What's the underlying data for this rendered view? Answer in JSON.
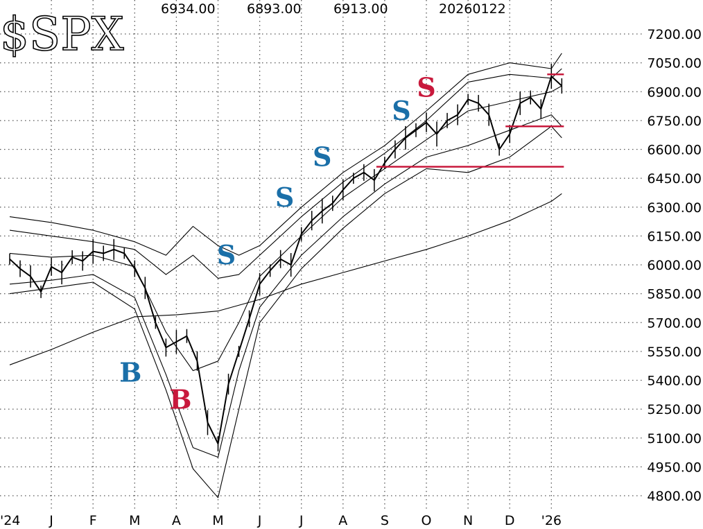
{
  "header": {
    "symbol": "$SPX",
    "values": [
      "6934.00",
      "6893.00",
      "6913.00",
      "20260122"
    ]
  },
  "chart_data": {
    "type": "line",
    "title": "$SPX",
    "xlabel": "",
    "ylabel": "",
    "ylim": [
      4800,
      7200
    ],
    "y_ticks": [
      "7200.00",
      "7050.00",
      "6900.00",
      "6750.00",
      "6600.00",
      "6450.00",
      "6300.00",
      "6150.00",
      "6000.00",
      "5850.00",
      "5700.00",
      "5550.00",
      "5400.00",
      "5250.00",
      "5100.00",
      "4950.00",
      "4800.00"
    ],
    "x_ticks": [
      "24",
      "J",
      "F",
      "M",
      "A",
      "M",
      "J",
      "J",
      "A",
      "S",
      "O",
      "N",
      "D",
      "26"
    ],
    "grid": true,
    "series": [
      {
        "role": "price",
        "x": [
          0,
          0.25,
          0.5,
          0.75,
          1,
          1.25,
          1.5,
          1.75,
          2,
          2.25,
          2.5,
          2.75,
          3,
          3.25,
          3.5,
          3.75,
          4,
          4.25,
          4.5,
          4.75,
          5,
          5.25,
          5.5,
          5.75,
          6,
          6.25,
          6.5,
          6.75,
          7,
          7.25,
          7.5,
          7.75,
          8,
          8.25,
          8.5,
          8.75,
          9,
          9.25,
          9.5,
          9.75,
          10,
          10.25,
          10.5,
          10.75,
          11,
          11.25,
          11.5,
          11.75,
          12,
          12.25,
          12.5,
          12.75,
          13,
          13.25
        ],
        "y": [
          6030,
          5980,
          5940,
          5860,
          5990,
          5960,
          6040,
          6020,
          6070,
          6060,
          6080,
          6060,
          5980,
          5880,
          5700,
          5570,
          5600,
          5630,
          5500,
          5180,
          5070,
          5380,
          5550,
          5720,
          5900,
          5970,
          6030,
          6000,
          6160,
          6230,
          6280,
          6320,
          6390,
          6450,
          6480,
          6440,
          6530,
          6600,
          6660,
          6700,
          6740,
          6680,
          6750,
          6780,
          6860,
          6840,
          6780,
          6600,
          6680,
          6840,
          6870,
          6810,
          6980,
          6930
        ]
      },
      {
        "role": "upper-band-outer",
        "x": [
          0,
          1,
          2,
          3,
          3.75,
          4.4,
          5,
          5.5,
          6,
          7,
          8,
          9,
          10,
          11,
          12,
          13,
          13.25
        ],
        "y": [
          6250,
          6220,
          6180,
          6120,
          6050,
          6200,
          6100,
          6050,
          6100,
          6300,
          6480,
          6620,
          6800,
          6990,
          7050,
          7020,
          7100
        ]
      },
      {
        "role": "upper-band-inner",
        "x": [
          0,
          1,
          2,
          3,
          3.75,
          4.4,
          5,
          5.5,
          6,
          7,
          8,
          9,
          10,
          11,
          12,
          13,
          13.25
        ],
        "y": [
          6180,
          6150,
          6120,
          6080,
          5950,
          6050,
          5930,
          5950,
          6050,
          6250,
          6430,
          6580,
          6750,
          6950,
          6990,
          6970,
          7020
        ]
      },
      {
        "role": "middle-average",
        "x": [
          0,
          1,
          2,
          3,
          3.75,
          4.4,
          5,
          5.5,
          6,
          7,
          8,
          9,
          10,
          11,
          12,
          13,
          13.25
        ],
        "y": [
          6060,
          6040,
          6050,
          5990,
          5650,
          5450,
          5500,
          5700,
          5940,
          6150,
          6350,
          6500,
          6650,
          6800,
          6850,
          6900,
          6930
        ]
      },
      {
        "role": "lower-band-inner",
        "x": [
          0,
          1,
          2,
          3,
          3.75,
          4.4,
          5,
          5.5,
          6,
          7,
          8,
          9,
          10,
          11,
          12,
          13,
          13.25
        ],
        "y": [
          5900,
          5920,
          5950,
          5830,
          5430,
          5050,
          5000,
          5450,
          5780,
          6050,
          6250,
          6420,
          6560,
          6620,
          6700,
          6780,
          6720
        ]
      },
      {
        "role": "lower-band-outer",
        "x": [
          0,
          1,
          2,
          3,
          3.75,
          4.4,
          5,
          5.5,
          6,
          7,
          8,
          9,
          10,
          11,
          12,
          13,
          13.25
        ],
        "y": [
          5850,
          5880,
          5910,
          5770,
          5350,
          4940,
          4790,
          5250,
          5700,
          5980,
          6190,
          6370,
          6500,
          6480,
          6560,
          6720,
          6660
        ]
      },
      {
        "role": "long-term-average",
        "x": [
          0,
          1,
          2,
          3,
          4,
          5,
          6,
          7,
          8,
          9,
          10,
          11,
          12,
          13,
          13.25
        ],
        "y": [
          5480,
          5560,
          5650,
          5730,
          5740,
          5760,
          5820,
          5900,
          5960,
          6020,
          6080,
          6150,
          6230,
          6330,
          6370
        ]
      }
    ],
    "reference_lines": [
      {
        "y": 6510,
        "x_start": 8.8,
        "x_end": 13.3,
        "color": "#c8193c"
      },
      {
        "y": 6720,
        "x_start": 11.9,
        "x_end": 13.3,
        "color": "#c8193c"
      },
      {
        "y": 6990,
        "x_start": 12.9,
        "x_end": 13.3,
        "color": "#c8193c"
      }
    ],
    "annotations": [
      {
        "text": "B",
        "x": 2.9,
        "y": 5440,
        "color": "#1a6fa8"
      },
      {
        "text": "B",
        "x": 4.1,
        "y": 5300,
        "color": "#c8193c"
      },
      {
        "text": "S",
        "x": 5.2,
        "y": 6050,
        "color": "#1a6fa8"
      },
      {
        "text": "S",
        "x": 6.6,
        "y": 6350,
        "color": "#1a6fa8"
      },
      {
        "text": "S",
        "x": 7.5,
        "y": 6560,
        "color": "#1a6fa8"
      },
      {
        "text": "S",
        "x": 9.4,
        "y": 6800,
        "color": "#1a6fa8"
      },
      {
        "text": "S",
        "x": 10.0,
        "y": 6920,
        "color": "#c8193c"
      }
    ],
    "colors": {
      "buy_sell_blue": "#1a6fa8",
      "buy_sell_red": "#c8193c",
      "line": "#000000",
      "grid": "#555555"
    }
  }
}
